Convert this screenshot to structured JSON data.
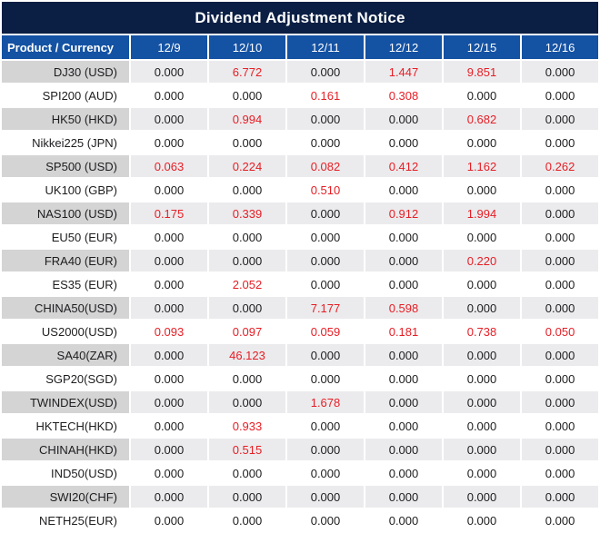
{
  "title": "Dividend Adjustment Notice",
  "table": {
    "product_header": "Product / Currency",
    "date_headers": [
      "12/9",
      "12/10",
      "12/11",
      "12/12",
      "12/15",
      "12/16"
    ],
    "rows": [
      {
        "product": "DJ30 (USD)",
        "values": [
          "0.000",
          "6.772",
          "0.000",
          "1.447",
          "9.851",
          "0.000"
        ]
      },
      {
        "product": "SPI200 (AUD)",
        "values": [
          "0.000",
          "0.000",
          "0.161",
          "0.308",
          "0.000",
          "0.000"
        ]
      },
      {
        "product": "HK50 (HKD)",
        "values": [
          "0.000",
          "0.994",
          "0.000",
          "0.000",
          "0.682",
          "0.000"
        ]
      },
      {
        "product": "Nikkei225 (JPN)",
        "values": [
          "0.000",
          "0.000",
          "0.000",
          "0.000",
          "0.000",
          "0.000"
        ]
      },
      {
        "product": "SP500 (USD)",
        "values": [
          "0.063",
          "0.224",
          "0.082",
          "0.412",
          "1.162",
          "0.262"
        ]
      },
      {
        "product": "UK100 (GBP)",
        "values": [
          "0.000",
          "0.000",
          "0.510",
          "0.000",
          "0.000",
          "0.000"
        ]
      },
      {
        "product": "NAS100 (USD)",
        "values": [
          "0.175",
          "0.339",
          "0.000",
          "0.912",
          "1.994",
          "0.000"
        ]
      },
      {
        "product": "EU50 (EUR)",
        "values": [
          "0.000",
          "0.000",
          "0.000",
          "0.000",
          "0.000",
          "0.000"
        ]
      },
      {
        "product": "FRA40 (EUR)",
        "values": [
          "0.000",
          "0.000",
          "0.000",
          "0.000",
          "0.220",
          "0.000"
        ]
      },
      {
        "product": "ES35 (EUR)",
        "values": [
          "0.000",
          "2.052",
          "0.000",
          "0.000",
          "0.000",
          "0.000"
        ]
      },
      {
        "product": "CHINA50(USD)",
        "values": [
          "0.000",
          "0.000",
          "7.177",
          "0.598",
          "0.000",
          "0.000"
        ]
      },
      {
        "product": "US2000(USD)",
        "values": [
          "0.093",
          "0.097",
          "0.059",
          "0.181",
          "0.738",
          "0.050"
        ]
      },
      {
        "product": "SA40(ZAR)",
        "values": [
          "0.000",
          "46.123",
          "0.000",
          "0.000",
          "0.000",
          "0.000"
        ]
      },
      {
        "product": "SGP20(SGD)",
        "values": [
          "0.000",
          "0.000",
          "0.000",
          "0.000",
          "0.000",
          "0.000"
        ]
      },
      {
        "product": "TWINDEX(USD)",
        "values": [
          "0.000",
          "0.000",
          "1.678",
          "0.000",
          "0.000",
          "0.000"
        ]
      },
      {
        "product": "HKTECH(HKD)",
        "values": [
          "0.000",
          "0.933",
          "0.000",
          "0.000",
          "0.000",
          "0.000"
        ]
      },
      {
        "product": "CHINAH(HKD)",
        "values": [
          "0.000",
          "0.515",
          "0.000",
          "0.000",
          "0.000",
          "0.000"
        ]
      },
      {
        "product": "IND50(USD)",
        "values": [
          "0.000",
          "0.000",
          "0.000",
          "0.000",
          "0.000",
          "0.000"
        ]
      },
      {
        "product": "SWI20(CHF)",
        "values": [
          "0.000",
          "0.000",
          "0.000",
          "0.000",
          "0.000",
          "0.000"
        ]
      },
      {
        "product": "NETH25(EUR)",
        "values": [
          "0.000",
          "0.000",
          "0.000",
          "0.000",
          "0.000",
          "0.000"
        ]
      }
    ]
  },
  "colors": {
    "title_bg": "#0b1f44",
    "header_bg": "#1452a3",
    "header_text": "#ffffff",
    "alt_row_product_bg": "#d4d4d5",
    "alt_row_value_bg": "#ebebed",
    "zero_value_text": "#1d1d1f",
    "nonzero_value_text": "#e61e25"
  }
}
